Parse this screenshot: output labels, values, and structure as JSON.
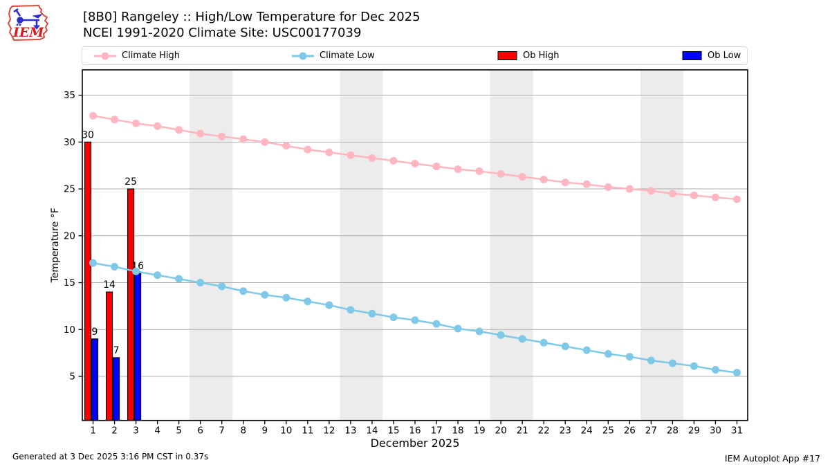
{
  "header": {
    "logo": {
      "text": "IEM",
      "outline_color": "#d94a3d",
      "instrument_color": "#2a2ad4",
      "text_color": "#cc2222"
    },
    "title_line1": "[8B0] Rangeley :: High/Low Temperature for Dec 2025",
    "title_line2": "NCEI 1991-2020 Climate Site: USC00177039"
  },
  "legend": {
    "items": [
      {
        "label": "Climate High",
        "type": "line",
        "color": "#ffb6c1"
      },
      {
        "label": "Climate Low",
        "type": "line",
        "color": "#7ec8e8"
      },
      {
        "label": "Ob High",
        "type": "patch",
        "color": "#ff0000"
      },
      {
        "label": "Ob Low",
        "type": "patch",
        "color": "#0000ff"
      }
    ]
  },
  "chart_data": {
    "type": "line+bar",
    "title": "[8B0] Rangeley :: High/Low Temperature for Dec 2025",
    "subtitle": "NCEI 1991-2020 Climate Site: USC00177039",
    "xlabel": "December 2025",
    "ylabel": "Temperature °F",
    "x": [
      1,
      2,
      3,
      4,
      5,
      6,
      7,
      8,
      9,
      10,
      11,
      12,
      13,
      14,
      15,
      16,
      17,
      18,
      19,
      20,
      21,
      22,
      23,
      24,
      25,
      26,
      27,
      28,
      29,
      30,
      31
    ],
    "xlim": [
      0.5,
      31.5
    ],
    "ylim": [
      0.3,
      37.7
    ],
    "yticks": [
      5,
      10,
      15,
      20,
      25,
      30,
      35
    ],
    "grid": "horizontal",
    "grid_color": "#b0b0b0",
    "weekend_bands": [
      [
        5.5,
        7.5
      ],
      [
        12.5,
        14.5
      ],
      [
        19.5,
        21.5
      ],
      [
        26.5,
        28.5
      ]
    ],
    "band_color": "#ececec",
    "series": [
      {
        "name": "Climate High",
        "type": "line",
        "color": "#ffb6c1",
        "values": [
          32.8,
          32.4,
          32.0,
          31.7,
          31.3,
          30.9,
          30.6,
          30.3,
          30.0,
          29.6,
          29.2,
          28.9,
          28.6,
          28.3,
          28.0,
          27.7,
          27.4,
          27.1,
          26.9,
          26.6,
          26.3,
          26.0,
          25.7,
          25.5,
          25.2,
          25.0,
          24.8,
          24.5,
          24.3,
          24.1,
          23.9
        ]
      },
      {
        "name": "Climate Low",
        "type": "line",
        "color": "#7ec8e8",
        "values": [
          17.1,
          16.7,
          16.2,
          15.8,
          15.4,
          15.0,
          14.6,
          14.1,
          13.7,
          13.4,
          13.0,
          12.6,
          12.1,
          11.7,
          11.3,
          11.0,
          10.6,
          10.1,
          9.8,
          9.4,
          9.0,
          8.6,
          8.2,
          7.8,
          7.4,
          7.1,
          6.7,
          6.4,
          6.1,
          5.7,
          5.4
        ]
      },
      {
        "name": "Ob High",
        "type": "bar",
        "color": "#ff0000",
        "edge_color": "#000000",
        "x": [
          1,
          2,
          3
        ],
        "values": [
          30,
          14,
          25
        ],
        "labels": [
          "30",
          "14",
          "25"
        ]
      },
      {
        "name": "Ob Low",
        "type": "bar",
        "color": "#0000ff",
        "edge_color": "#000000",
        "x": [
          1,
          2,
          3
        ],
        "values": [
          9,
          7,
          16
        ],
        "labels": [
          "9",
          "7",
          "16"
        ]
      }
    ]
  },
  "footer": {
    "left": "Generated at 3 Dec 2025 3:16 PM CST in 0.37s",
    "right": "IEM Autoplot App #17"
  }
}
